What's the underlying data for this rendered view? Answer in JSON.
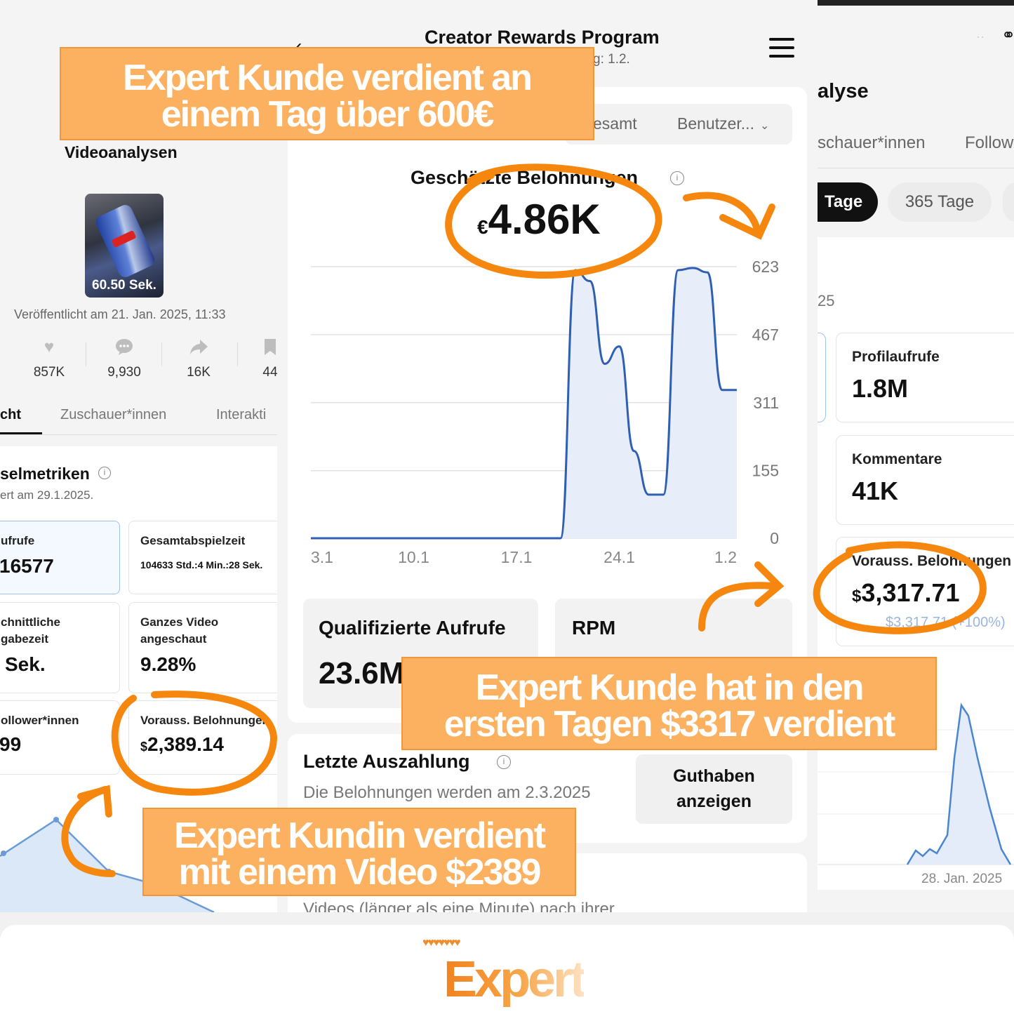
{
  "left": {
    "title": "Videoanalysen",
    "thumbnail_duration": "60.50 Sek.",
    "published": "Veröffentlicht am 21. Jan. 2025, 11:33",
    "stats": [
      {
        "icon": "heart-icon",
        "value": "857K"
      },
      {
        "icon": "comment-icon",
        "value": "9,930"
      },
      {
        "icon": "share-icon",
        "value": "16K"
      },
      {
        "icon": "bookmark-icon",
        "value": "44"
      }
    ],
    "tabs": [
      "cht",
      "Zuschauer*innen",
      "Interakti"
    ],
    "section_title": "selmetriken",
    "section_sub": "ert am 29.1.2025.",
    "cards": [
      {
        "label": "ufrufe",
        "value": "16577"
      },
      {
        "label": "Gesamtabspielzeit",
        "value": "104633 Std.:4 Min.:28 Sek."
      },
      {
        "label": "chnittliche\ngabezeit",
        "value": "Sek."
      },
      {
        "label": "Ganzes Video\nangeschaut",
        "value": "9.28%"
      },
      {
        "label": "ollower*innen",
        "value": "99"
      },
      {
        "label": "Vorauss. Belohnungen",
        "value_prefix": "$",
        "value": "2,389.14"
      }
    ]
  },
  "mid": {
    "header_title": "Creator Rewards Program",
    "header_sub": "g: 1.2.",
    "filter_left": "esamt",
    "filter_right": "Benutzer...",
    "estimate_label": "Geschätzte Belohnungen",
    "estimate_prefix": "€",
    "estimate_value": "4.86K",
    "qualified_label": "Qualifizierte Aufrufe",
    "qualified_value": "23.6M",
    "rpm_label": "RPM",
    "payout_title": "Letzte Auszahlung",
    "payout_text": "Die Belohnungen werden am 2.3.2025",
    "balance_button": "Guthaben anzeigen",
    "bottom_text": "Videos (länger als eine Minute) nach ihrer"
  },
  "right": {
    "title": "alyse",
    "tabs": [
      "schauer*innen",
      "Follow"
    ],
    "pills": [
      "Tage",
      "365 Tage"
    ],
    "date_frag": "25",
    "cards": [
      {
        "label": "Profilaufrufe",
        "value": "1.8M"
      },
      {
        "label": "Kommentare",
        "value": "41K"
      },
      {
        "label": "Vorauss. Belohnungen",
        "value_prefix": "$",
        "value": "3,317.71",
        "sub": "$3,317.71 (+100%)"
      }
    ],
    "xaxis_label": "28. Jan. 2025"
  },
  "banners": {
    "top": [
      "Expert Kunde verdient an",
      "einem Tag über 600€"
    ],
    "middle": [
      "Expert Kunde hat in den",
      "ersten Tagen $3317 verdient"
    ],
    "bottom": [
      "Expert Kundin verdient",
      "mit einem Video $2389"
    ]
  },
  "footer": {
    "logo": "Expert"
  },
  "chart_data": {
    "type": "area",
    "title": "Geschätzte Belohnungen",
    "x_ticks": [
      "3.1",
      "10.1",
      "17.1",
      "24.1",
      "1.2"
    ],
    "y_ticks": [
      0,
      155,
      311,
      467,
      623
    ],
    "ylim": [
      0,
      623
    ],
    "x": [
      "3.1",
      "10.1",
      "17.1",
      "19.1",
      "20.1",
      "21.1",
      "22.1",
      "23.1",
      "24.1",
      "25.1",
      "26.1",
      "27.1",
      "28.1",
      "29.1",
      "30.1",
      "31.1",
      "1.2"
    ],
    "values": [
      0,
      0,
      0,
      0,
      0,
      615,
      590,
      400,
      440,
      200,
      100,
      100,
      615,
      620,
      610,
      340,
      340
    ],
    "color": "#2f5fb3",
    "fill": "#e8eef9"
  }
}
